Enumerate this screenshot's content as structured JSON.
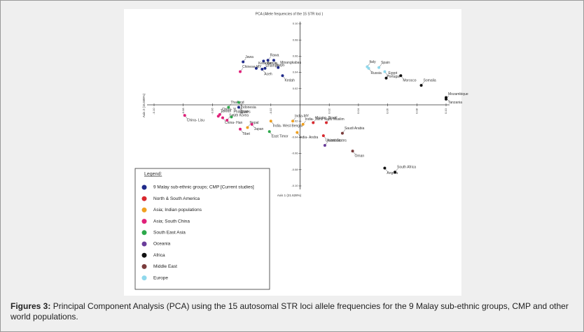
{
  "chart_data": {
    "type": "scatter",
    "title": "PCA (Allele frequencies of the 15 STR loci )",
    "xlabel": "Axis 1 (21.628%)",
    "ylabel": "Axis 2 (15.589%)",
    "xlim": [
      -0.1,
      0.1
    ],
    "ylim": [
      -0.1,
      0.1
    ],
    "xticks": [
      {
        "value": -0.1,
        "label": "-0.10"
      },
      -0.08,
      -0.06,
      -0.04,
      -0.02,
      0.02,
      0.04,
      0.06,
      0.08,
      {
        "value": 0.1,
        "label": "0.10"
      }
    ],
    "yticks": [
      {
        "value": 0.1,
        "label": "0.10"
      },
      0.08,
      0.06,
      0.04,
      0.02,
      -0.02,
      -0.04,
      -0.06,
      -0.08,
      {
        "value": -0.1,
        "label": "-0.10"
      }
    ],
    "legend_title": "Legend:",
    "series": [
      {
        "name": "9 Malay sub-ethnic groups; CMP [Current studies]",
        "color": "#1f2a8a",
        "labels": [
          "Jawa",
          "Champa",
          "Rawa",
          "Bugis",
          "Minangkabau",
          "Kedah",
          "Banjar",
          "Aceh",
          "Kelantan",
          "CMP"
        ],
        "x": [
          -0.039,
          -0.025,
          -0.022,
          -0.018,
          -0.015,
          -0.012,
          -0.024,
          -0.026,
          -0.03,
          -0.042
        ],
        "values": [
          0.053,
          0.054,
          0.055,
          0.055,
          0.046,
          0.036,
          0.045,
          0.044,
          0.045,
          -0.003
        ]
      },
      {
        "name": "North & South America",
        "color": "#d8282e",
        "labels": [
          "Mexico",
          "United States",
          "Brazil"
        ],
        "x": [
          0.009,
          0.016,
          0.018
        ],
        "values": [
          -0.022,
          -0.038,
          -0.022
        ]
      },
      {
        "name": "Asia; Indian populations",
        "color": "#f0a020",
        "labels": [
          "India-MY",
          "India- West Bengal",
          "India- Tamil Nadu Muslim",
          "India- Andra",
          "Nepal"
        ],
        "x": [
          -0.005,
          -0.02,
          0.002,
          -0.002,
          -0.036
        ],
        "values": [
          -0.02,
          -0.02,
          -0.024,
          -0.034,
          -0.028
        ]
      },
      {
        "name": "Asia; South China",
        "color": "#e0207a",
        "labels": [
          "Chinese-MY",
          "China- Lisu",
          "Taiwan",
          "China- Han",
          "South Korea",
          "Tibet",
          "China- Yi",
          "Japan"
        ],
        "x": [
          -0.041,
          -0.079,
          -0.056,
          -0.053,
          -0.05,
          -0.041,
          -0.055,
          -0.033
        ],
        "values": [
          0.041,
          -0.013,
          -0.014,
          -0.016,
          -0.019,
          -0.03,
          -0.012,
          -0.024
        ]
      },
      {
        "name": "South East Asia",
        "color": "#2ca84a",
        "labels": [
          "Thailand",
          "Indonesia",
          "Philippines",
          "East Timor"
        ],
        "x": [
          -0.049,
          -0.042,
          -0.047,
          -0.021
        ],
        "values": [
          -0.003,
          0.003,
          -0.015,
          -0.033
        ]
      },
      {
        "name": "Oceania",
        "color": "#6a3d9a",
        "labels": [
          "Australia"
        ],
        "x": [
          0.017
        ],
        "values": [
          -0.05
        ]
      },
      {
        "name": "Africa",
        "color": "#111111",
        "labels": [
          "Egypt",
          "Morocco",
          "Somalia",
          "Tanzania",
          "Mozambique",
          "Angola",
          "South Africa"
        ],
        "x": [
          0.059,
          0.069,
          0.083,
          0.1,
          0.1,
          0.058,
          0.065
        ],
        "values": [
          0.033,
          0.036,
          0.024,
          0.009,
          0.007,
          -0.078,
          -0.083
        ]
      },
      {
        "name": "Middle East",
        "color": "#7a3b3b",
        "labels": [
          "Saudi Arabia",
          "Oman"
        ],
        "x": [
          0.029,
          0.036
        ],
        "values": [
          -0.035,
          -0.057
        ]
      },
      {
        "name": "Europe",
        "color": "#8fd8ec",
        "labels": [
          "Italy",
          "Russia",
          "Spain",
          "Portugal"
        ],
        "x": [
          0.046,
          0.047,
          0.054,
          0.058
        ],
        "values": [
          0.047,
          0.045,
          0.046,
          0.041
        ]
      }
    ]
  },
  "caption": {
    "label": "Figures 3:",
    "text": " Principal Component Analysis (PCA) using the 15 autosomal STR loci allele frequencies for the 9 Malay sub-ethnic groups, CMP and other world populations."
  }
}
